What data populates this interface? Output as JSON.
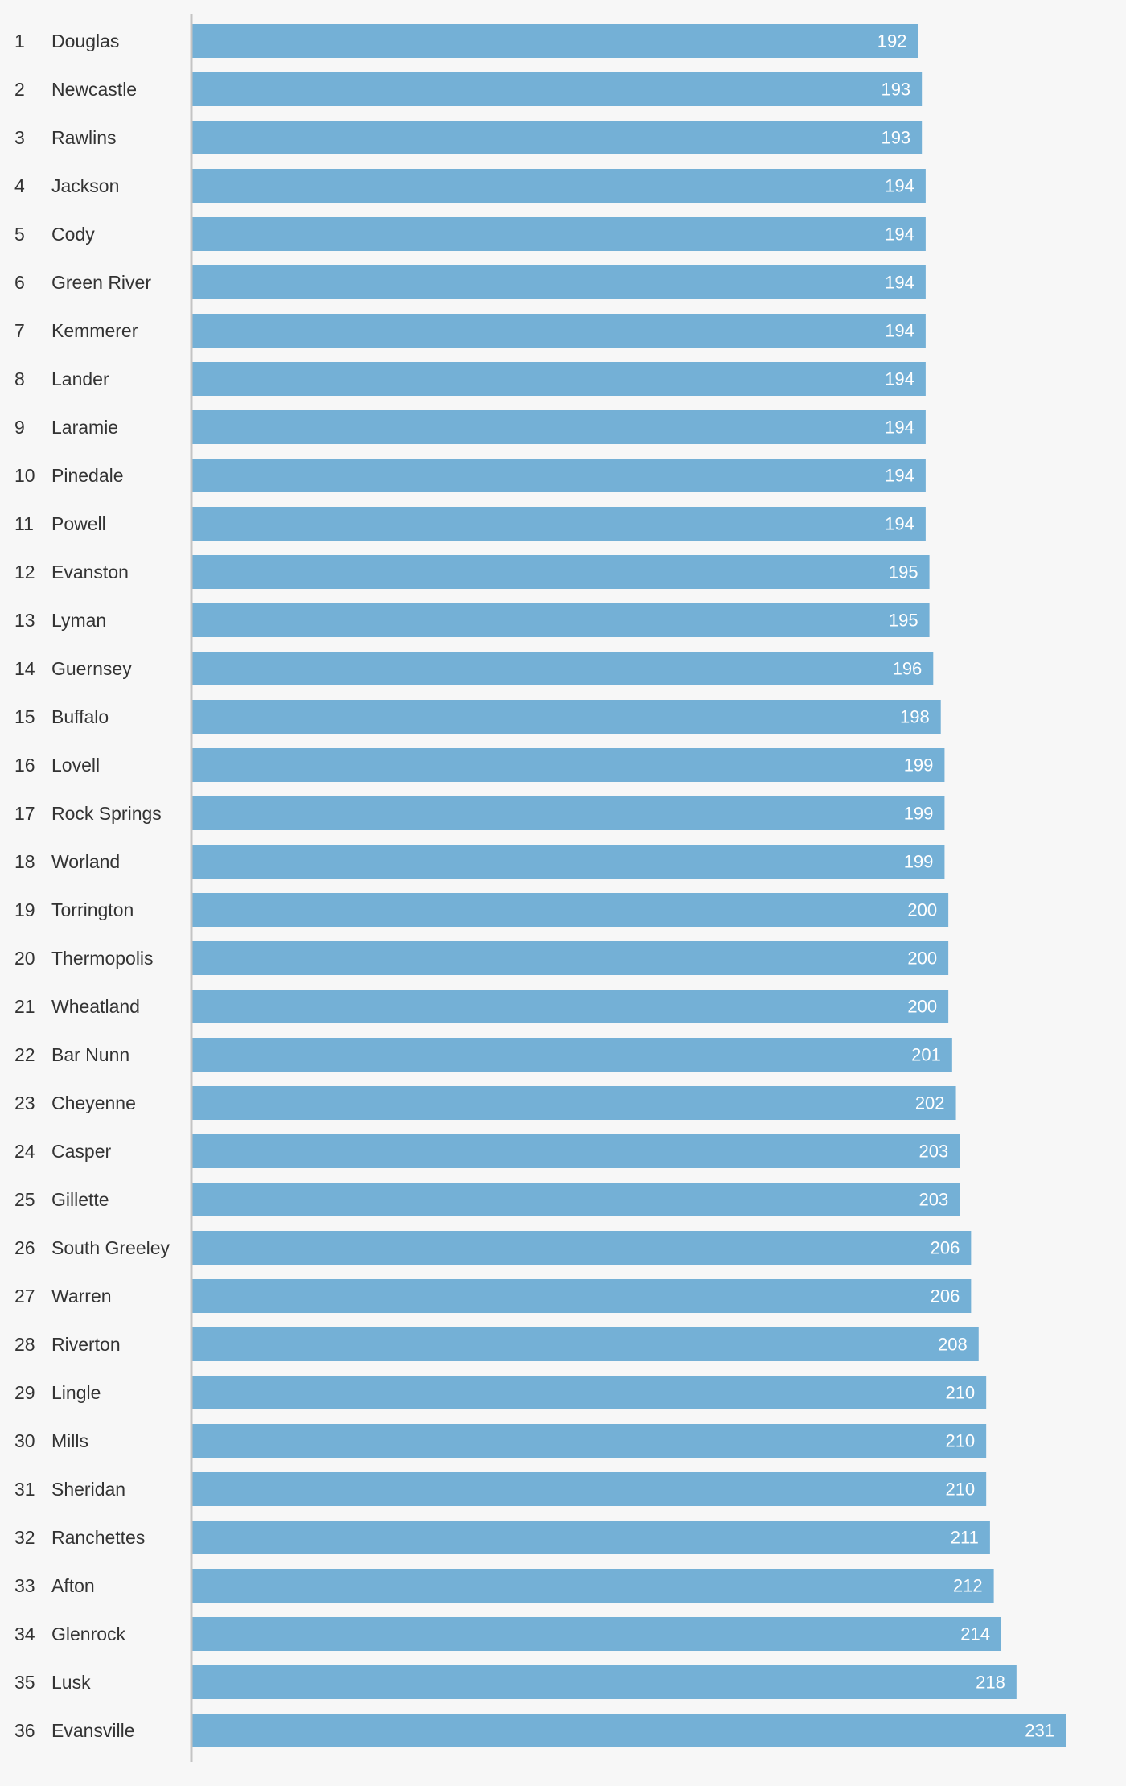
{
  "colors": {
    "background": "#f7f7f7",
    "bar": "#74b0d6",
    "axis": "#c4c4c4",
    "label_text": "#333333",
    "value_text": "#ffffff"
  },
  "chart_data": {
    "type": "bar",
    "orientation": "horizontal",
    "title": "",
    "xlabel": "",
    "ylabel": "",
    "grid": false,
    "value_labels": "inside-end",
    "xlim": [
      0,
      231
    ],
    "ranks": [
      "1",
      "2",
      "3",
      "4",
      "5",
      "6",
      "7",
      "8",
      "9",
      "10",
      "11",
      "12",
      "13",
      "14",
      "15",
      "16",
      "17",
      "18",
      "19",
      "20",
      "21",
      "22",
      "23",
      "24",
      "25",
      "26",
      "27",
      "28",
      "29",
      "30",
      "31",
      "32",
      "33",
      "34",
      "35",
      "36"
    ],
    "categories": [
      "Douglas",
      "Newcastle",
      "Rawlins",
      "Jackson",
      "Cody",
      "Green River",
      "Kemmerer",
      "Lander",
      "Laramie",
      "Pinedale",
      "Powell",
      "Evanston",
      "Lyman",
      "Guernsey",
      "Buffalo",
      "Lovell",
      "Rock Springs",
      "Worland",
      "Torrington",
      "Thermopolis",
      "Wheatland",
      "Bar Nunn",
      "Cheyenne",
      "Casper",
      "Gillette",
      "South Greeley",
      "Warren",
      "Riverton",
      "Lingle",
      "Mills",
      "Sheridan",
      "Ranchettes",
      "Afton",
      "Glenrock",
      "Lusk",
      "Evansville"
    ],
    "values": [
      192,
      193,
      193,
      194,
      194,
      194,
      194,
      194,
      194,
      194,
      194,
      195,
      195,
      196,
      198,
      199,
      199,
      199,
      200,
      200,
      200,
      201,
      202,
      203,
      203,
      206,
      206,
      208,
      210,
      210,
      210,
      211,
      212,
      214,
      218,
      231
    ]
  }
}
